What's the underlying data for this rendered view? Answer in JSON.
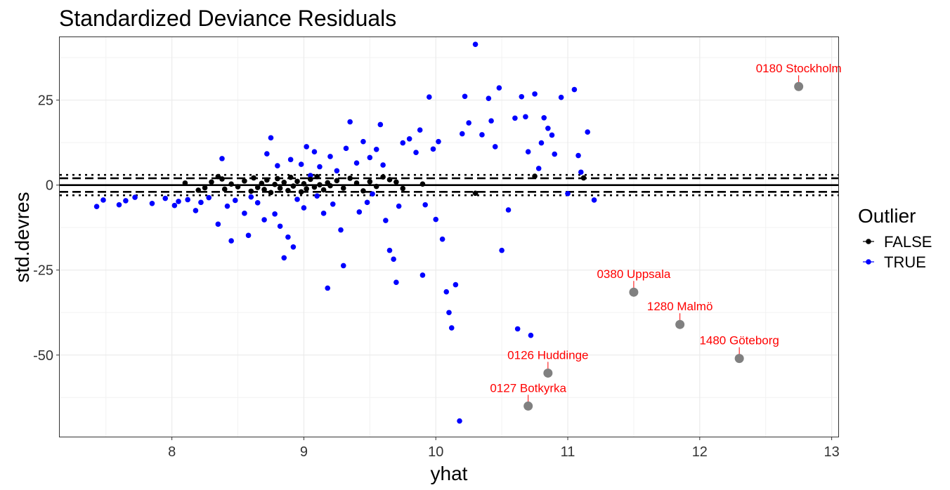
{
  "chart_data": {
    "type": "scatter",
    "title": "Standardized Deviance Residuals",
    "xlabel": "yhat",
    "ylabel": "std.devres",
    "xlim": [
      7.15,
      13.05
    ],
    "ylim": [
      -74,
      43.5
    ],
    "x_ticks": [
      8,
      9,
      10,
      11,
      12,
      13
    ],
    "x_tick_labels": [
      "8",
      "9",
      "10",
      "11",
      "12",
      "13"
    ],
    "y_ticks": [
      25,
      0,
      -25,
      -50
    ],
    "y_tick_labels": [
      "25",
      "0",
      "-25",
      "-50"
    ],
    "grid": true,
    "reference_lines": [
      {
        "y": 0,
        "style": "solid"
      },
      {
        "y": 2,
        "style": "dashed"
      },
      {
        "y": -2,
        "style": "dashed"
      },
      {
        "y": 3,
        "style": "dotted"
      },
      {
        "y": -3,
        "style": "dotted"
      }
    ],
    "legend": {
      "title": "Outlier",
      "placement": "right",
      "entries": [
        {
          "label": "FALSE",
          "color": "#000000"
        },
        {
          "label": "TRUE",
          "color": "#0000ff"
        }
      ]
    },
    "series": [
      {
        "name": "FALSE",
        "color": "#000000",
        "points": [
          [
            8.1,
            0.6
          ],
          [
            8.2,
            -1.5
          ],
          [
            8.25,
            -0.8
          ],
          [
            8.3,
            0.9
          ],
          [
            8.35,
            2.5
          ],
          [
            8.38,
            1.8
          ],
          [
            8.4,
            -1.2
          ],
          [
            8.45,
            0.3
          ],
          [
            8.5,
            -0.5
          ],
          [
            8.55,
            1.2
          ],
          [
            8.6,
            -1.8
          ],
          [
            8.62,
            2.1
          ],
          [
            8.65,
            -0.7
          ],
          [
            8.68,
            0.5
          ],
          [
            8.7,
            -1.3
          ],
          [
            8.72,
            1.5
          ],
          [
            8.75,
            -2.2
          ],
          [
            8.78,
            0.2
          ],
          [
            8.8,
            1.9
          ],
          [
            8.82,
            -0.9
          ],
          [
            8.85,
            0.8
          ],
          [
            8.88,
            -1.6
          ],
          [
            8.9,
            2.3
          ],
          [
            8.92,
            -0.3
          ],
          [
            8.95,
            1.1
          ],
          [
            8.98,
            -2
          ],
          [
            9,
            0.4
          ],
          [
            9.02,
            -1.1
          ],
          [
            9.05,
            1.7
          ],
          [
            9.08,
            -0.6
          ],
          [
            9.1,
            2.5
          ],
          [
            9.12,
            0.1
          ],
          [
            9.15,
            -1.4
          ],
          [
            9.18,
            0.7
          ],
          [
            9.2,
            -0.2
          ],
          [
            9.25,
            1.3
          ],
          [
            9.3,
            -0.9
          ],
          [
            9.35,
            2
          ],
          [
            9.4,
            0.6
          ],
          [
            9.45,
            -1.7
          ],
          [
            9.5,
            1
          ],
          [
            9.55,
            -0.4
          ],
          [
            9.6,
            2.4
          ],
          [
            9.65,
            1.6
          ],
          [
            9.7,
            0.9
          ],
          [
            9.75,
            -1
          ],
          [
            9.9,
            0.3
          ],
          [
            10.3,
            -2.4
          ],
          [
            10.75,
            2.6
          ],
          [
            11.12,
            2.1
          ]
        ]
      },
      {
        "name": "TRUE",
        "color": "#0000ff",
        "points": [
          [
            7.43,
            -6.3
          ],
          [
            7.48,
            -4.4
          ],
          [
            7.6,
            -5.8
          ],
          [
            7.65,
            -4.6
          ],
          [
            7.72,
            -3.6
          ],
          [
            7.85,
            -5.4
          ],
          [
            7.95,
            -3.9
          ],
          [
            8.02,
            -6
          ],
          [
            8.05,
            -4.8
          ],
          [
            8.12,
            -4.3
          ],
          [
            8.18,
            -7.5
          ],
          [
            8.22,
            -5.1
          ],
          [
            8.28,
            -3.7
          ],
          [
            8.35,
            -11.5
          ],
          [
            8.38,
            7.8
          ],
          [
            8.42,
            -6.2
          ],
          [
            8.45,
            -16.4
          ],
          [
            8.48,
            -4.5
          ],
          [
            8.55,
            -8.3
          ],
          [
            8.58,
            -14.8
          ],
          [
            8.6,
            -3.5
          ],
          [
            8.65,
            -5.2
          ],
          [
            8.7,
            -10.2
          ],
          [
            8.72,
            9.2
          ],
          [
            8.75,
            13.9
          ],
          [
            8.78,
            -8.5
          ],
          [
            8.8,
            5.7
          ],
          [
            8.82,
            -12.1
          ],
          [
            8.85,
            -21.4
          ],
          [
            8.88,
            -15.3
          ],
          [
            8.9,
            7.5
          ],
          [
            8.92,
            -18.2
          ],
          [
            8.95,
            -4.2
          ],
          [
            8.98,
            6.1
          ],
          [
            9,
            -6.7
          ],
          [
            9.02,
            11.3
          ],
          [
            9.05,
            2.8
          ],
          [
            9.08,
            9.8
          ],
          [
            9.1,
            -3.2
          ],
          [
            9.12,
            5.4
          ],
          [
            9.15,
            -8.3
          ],
          [
            9.18,
            -30.3
          ],
          [
            9.2,
            8.4
          ],
          [
            9.22,
            -5.6
          ],
          [
            9.25,
            4.2
          ],
          [
            9.28,
            -13.2
          ],
          [
            9.3,
            -23.7
          ],
          [
            9.32,
            10.8
          ],
          [
            9.35,
            18.6
          ],
          [
            9.4,
            6.5
          ],
          [
            9.42,
            -7.9
          ],
          [
            9.45,
            12.8
          ],
          [
            9.48,
            -5.1
          ],
          [
            9.5,
            8.1
          ],
          [
            9.52,
            -2.6
          ],
          [
            9.55,
            10.5
          ],
          [
            9.58,
            17.8
          ],
          [
            9.6,
            5.9
          ],
          [
            9.62,
            -10.4
          ],
          [
            9.65,
            -19.2
          ],
          [
            9.68,
            -21.8
          ],
          [
            9.7,
            -28.6
          ],
          [
            9.72,
            -6.2
          ],
          [
            9.75,
            12.4
          ],
          [
            9.8,
            13.6
          ],
          [
            9.85,
            9.6
          ],
          [
            9.88,
            16.2
          ],
          [
            9.9,
            -26.5
          ],
          [
            9.92,
            -5.8
          ],
          [
            9.95,
            25.9
          ],
          [
            9.98,
            10.6
          ],
          [
            10,
            -10.1
          ],
          [
            10.02,
            12.8
          ],
          [
            10.05,
            -15.9
          ],
          [
            10.08,
            -31.4
          ],
          [
            10.1,
            -37.5
          ],
          [
            10.12,
            -42
          ],
          [
            10.15,
            -29.3
          ],
          [
            10.18,
            -69.4
          ],
          [
            10.2,
            15.1
          ],
          [
            10.22,
            26.1
          ],
          [
            10.25,
            18.3
          ],
          [
            10.3,
            41.4
          ],
          [
            10.35,
            14.8
          ],
          [
            10.4,
            25.5
          ],
          [
            10.42,
            18.9
          ],
          [
            10.45,
            11.3
          ],
          [
            10.48,
            28.6
          ],
          [
            10.5,
            -19.2
          ],
          [
            10.55,
            -7.3
          ],
          [
            10.6,
            19.7
          ],
          [
            10.62,
            -42.3
          ],
          [
            10.65,
            26
          ],
          [
            10.68,
            20.1
          ],
          [
            10.7,
            9.8
          ],
          [
            10.72,
            -44.2
          ],
          [
            10.75,
            26.8
          ],
          [
            10.78,
            4.9
          ],
          [
            10.8,
            12.4
          ],
          [
            10.82,
            19.8
          ],
          [
            10.85,
            16.7
          ],
          [
            10.88,
            14.7
          ],
          [
            10.9,
            9.1
          ],
          [
            10.95,
            25.8
          ],
          [
            11,
            -2.5
          ],
          [
            11.05,
            28.1
          ],
          [
            11.08,
            8.7
          ],
          [
            11.1,
            3.8
          ],
          [
            11.15,
            15.6
          ],
          [
            11.2,
            -4.4
          ]
        ]
      }
    ],
    "outliers": [
      {
        "label": "0180 Stockholm",
        "x": 12.75,
        "y": 29
      },
      {
        "label": "0380 Uppsala",
        "x": 11.5,
        "y": -31.5
      },
      {
        "label": "1280 Malmö",
        "x": 11.85,
        "y": -41
      },
      {
        "label": "1480 Göteborg",
        "x": 12.3,
        "y": -51
      },
      {
        "label": "0126 Huddinge",
        "x": 10.85,
        "y": -55.3
      },
      {
        "label": "0127 Botkyrka",
        "x": 10.7,
        "y": -65
      }
    ],
    "outlier_style": {
      "point_color": "#808080",
      "label_color": "#ff0000"
    }
  }
}
